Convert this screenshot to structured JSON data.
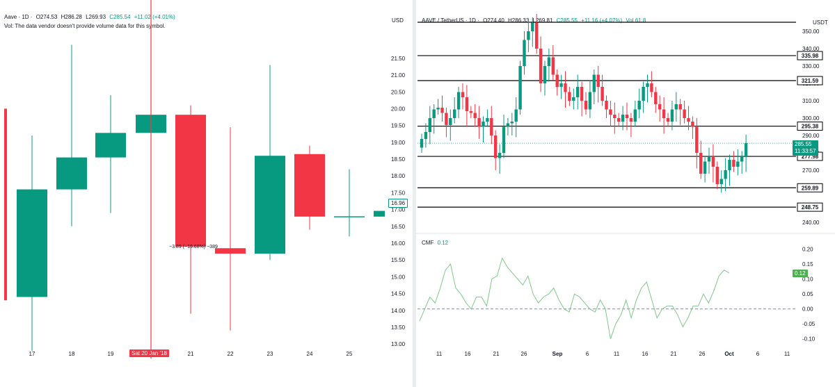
{
  "left": {
    "header": {
      "symbol": "Aave · 1D · ",
      "open": "O274.53",
      "high": "H286.28",
      "low": "L269.93",
      "close": "C285.54",
      "change": "+11.02 (+4.01%)",
      "volume_note": "Vol: The data vendor doesn't provide volume data for this symbol."
    },
    "currency": "USD",
    "price_label": "16.96",
    "measure_label": "−3.89 (−19.68%) −389",
    "date_tag": "Sat 20 Jan '18",
    "colors": {
      "up": "#089981",
      "down": "#f23645",
      "marker": "#f23645"
    }
  },
  "right": {
    "header": {
      "symbol": "AAVE / TetherUS · 1D · ",
      "open": "O274.40",
      "high": "H286.33",
      "low": "L269.81",
      "close": "C285.55",
      "change": "+11.16 (+4.07%)",
      "vol": "Vol 61.8"
    },
    "currency": "USDT",
    "price_label": "285.55",
    "countdown": "11:33:57",
    "cmf_label": "CMF",
    "cmf_value": "0.12",
    "cmf_axis_label": "0.12",
    "colors": {
      "up": "#089981",
      "down": "#f23645",
      "cmf": "#7fc98a"
    }
  },
  "chart_data": [
    {
      "type": "candlestick",
      "title": "Aave · 1D",
      "ylabel": "USD",
      "ylim": [
        12.9,
        22.2
      ],
      "yticks": [
        13.0,
        13.5,
        14.0,
        14.5,
        15.0,
        15.5,
        16.0,
        16.5,
        17.0,
        17.5,
        18.0,
        18.5,
        19.0,
        19.5,
        20.0,
        20.5,
        21.0,
        21.5
      ],
      "categories": [
        "17",
        "18",
        "19",
        "Sat 20 Jan '18",
        "21",
        "22",
        "23",
        "24",
        "25"
      ],
      "candles": [
        {
          "x": "17",
          "o": 14.4,
          "h": 19.2,
          "l": 12.8,
          "c": 17.6
        },
        {
          "x": "18",
          "o": 17.6,
          "h": 21.9,
          "l": 16.5,
          "c": 18.55
        },
        {
          "x": "19",
          "o": 18.55,
          "h": 20.4,
          "l": 16.9,
          "c": 19.28
        },
        {
          "x": "Sat 20 Jan '18",
          "o": 19.28,
          "h": 22.2,
          "l": 12.9,
          "c": 19.82
        },
        {
          "x": "21",
          "o": 19.82,
          "h": 20.1,
          "l": 13.9,
          "c": 15.9
        },
        {
          "x": "22",
          "o": 15.85,
          "h": 19.45,
          "l": 13.4,
          "c": 15.69
        },
        {
          "x": "23",
          "o": 15.69,
          "h": 21.3,
          "l": 15.5,
          "c": 18.6
        },
        {
          "x": "24",
          "o": 18.65,
          "h": 18.9,
          "l": 16.4,
          "c": 16.79
        },
        {
          "x": "25",
          "o": 16.8,
          "h": 18.2,
          "l": 16.2,
          "c": 16.8
        },
        {
          "x": "",
          "o": 16.79,
          "h": 16.96,
          "l": 16.79,
          "c": 16.96
        }
      ],
      "last_price": 16.96
    },
    {
      "type": "candlestick",
      "title": "AAVE / TetherUS · 1D",
      "ylabel": "USDT",
      "ylim": [
        236,
        356
      ],
      "yticks": [
        240,
        250,
        260,
        270,
        280,
        290,
        300,
        310,
        320,
        330,
        340,
        350
      ],
      "xticks": [
        "11",
        "16",
        "21",
        "26",
        "Sep",
        "6",
        "11",
        "16",
        "21",
        "26",
        "Oct",
        "6",
        "11"
      ],
      "levels": [
        248.75,
        259.89,
        277.98,
        295.38,
        321.59,
        335.98,
        355.2
      ],
      "last_price": 285.55,
      "closes": [
        288,
        292,
        300,
        305,
        306,
        303,
        296,
        300,
        305,
        315,
        312,
        304,
        303,
        300,
        295,
        298,
        300,
        290,
        277,
        280,
        295,
        297,
        298,
        305,
        330,
        345,
        350,
        355,
        340,
        320,
        330,
        335,
        325,
        318,
        320,
        315,
        310,
        312,
        318,
        310,
        305,
        315,
        325,
        318,
        310,
        305,
        302,
        300,
        298,
        302,
        300,
        298,
        305,
        310,
        318,
        320,
        315,
        308,
        305,
        300,
        298,
        305,
        308,
        305,
        300,
        298,
        295,
        280,
        268,
        275,
        278,
        272,
        262,
        265,
        270,
        276,
        272,
        275,
        278,
        285.55
      ]
    },
    {
      "type": "line",
      "title": "CMF",
      "ylim": [
        -0.11,
        0.22
      ],
      "yticks": [
        -0.1,
        -0.05,
        0.0,
        0.05,
        0.1,
        0.15,
        0.2
      ],
      "values": [
        -0.04,
        0.0,
        0.04,
        0.02,
        0.07,
        0.13,
        0.15,
        0.07,
        0.05,
        0.02,
        0.0,
        0.04,
        0.04,
        0.01,
        0.1,
        0.11,
        0.17,
        0.14,
        0.12,
        0.1,
        0.08,
        0.11,
        0.05,
        0.02,
        0.04,
        0.05,
        0.07,
        0.03,
        0.0,
        -0.01,
        0.05,
        0.04,
        0.02,
        0.0,
        -0.01,
        0.03,
        0.0,
        -0.1,
        -0.05,
        -0.02,
        0.03,
        -0.03,
        0.03,
        0.07,
        0.09,
        0.03,
        -0.03,
        0.0,
        0.01,
        0.01,
        -0.02,
        -0.06,
        -0.03,
        0.01,
        0.01,
        0.05,
        0.02,
        0.06,
        0.11,
        0.13,
        0.12
      ],
      "zero_line": 0.0,
      "last_value": 0.12
    }
  ]
}
